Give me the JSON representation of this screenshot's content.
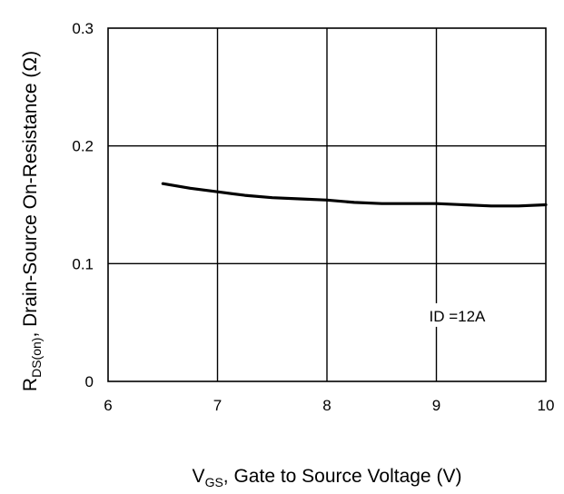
{
  "chart_data": {
    "type": "line",
    "title": "",
    "xlabel": {
      "main": "V",
      "sub": "GS",
      "rest": ", Gate to Source Voltage (V)"
    },
    "ylabel": {
      "main": "R",
      "sub": "DS(on)",
      "rest": ", Drain-Source On-Resistance (Ω)"
    },
    "xlim": [
      6,
      10
    ],
    "ylim": [
      0,
      0.3
    ],
    "x_ticks": [
      6,
      7,
      8,
      9,
      10
    ],
    "x_tick_labels": [
      "6",
      "7",
      "8",
      "9",
      "10"
    ],
    "y_ticks": [
      0,
      0.1,
      0.2,
      0.3
    ],
    "y_tick_labels": [
      "0",
      "0.1",
      "0.2",
      "0.3"
    ],
    "grid": true,
    "series": [
      {
        "x": [
          6.5,
          6.75,
          7.0,
          7.25,
          7.5,
          7.75,
          8.0,
          8.25,
          8.5,
          8.75,
          9.0,
          9.25,
          9.5,
          9.75,
          10.0
        ],
        "y": [
          0.168,
          0.164,
          0.161,
          0.158,
          0.156,
          0.155,
          0.154,
          0.152,
          0.151,
          0.151,
          0.151,
          0.15,
          0.149,
          0.149,
          0.15
        ]
      }
    ],
    "annotations": [
      {
        "text": "ID =12A",
        "x": 9.0,
        "y": 0.034
      }
    ]
  }
}
